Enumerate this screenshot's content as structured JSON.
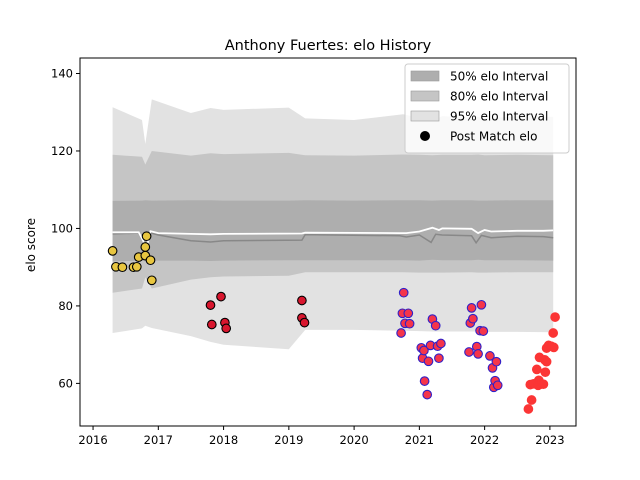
{
  "chart_data": {
    "type": "scatter",
    "title": "Anthony Fuertes: elo History",
    "xlabel": "",
    "ylabel": "elo score",
    "xlim": [
      2015.8,
      2023.4
    ],
    "ylim": [
      49,
      144
    ],
    "x_ticks": [
      2016,
      2017,
      2018,
      2019,
      2020,
      2021,
      2022,
      2023
    ],
    "y_ticks": [
      60,
      80,
      100,
      120,
      140
    ],
    "grid": false,
    "legend_position": "top-right",
    "legend": [
      {
        "label": "50% elo Interval",
        "kind": "band",
        "color": "#aeaeae"
      },
      {
        "label": "80% elo Interval",
        "kind": "band",
        "color": "#c5c5c5"
      },
      {
        "label": "95% elo Interval",
        "kind": "band",
        "color": "#e2e2e2"
      },
      {
        "label": "Post Match elo",
        "kind": "marker",
        "color": "#000000"
      }
    ],
    "bands": {
      "x": [
        2016.3,
        2016.75,
        2016.8,
        2016.9,
        2017.5,
        2017.8,
        2018.0,
        2019.0,
        2019.25,
        2020.0,
        2020.75,
        2021.0,
        2021.2,
        2021.35,
        2021.8,
        2021.9,
        2022.0,
        2022.5,
        2023.05
      ],
      "q50": {
        "lower": [
          91.5,
          91.7,
          91.5,
          91.7,
          91.7,
          91.6,
          91.7,
          91.8,
          91.8,
          91.8,
          91.8,
          91.7,
          91.9,
          91.8,
          91.8,
          91.9,
          91.8,
          91.8,
          91.7
        ],
        "upper": [
          107.1,
          107.2,
          107.3,
          107.2,
          107.3,
          107.3,
          107.2,
          107.2,
          107.3,
          107.2,
          107.3,
          107.3,
          107.2,
          107.3,
          107.3,
          107.2,
          107.2,
          107.3,
          107.3
        ]
      },
      "q80": {
        "lower": [
          83.4,
          84.5,
          87.4,
          84.5,
          86.8,
          87.4,
          87.6,
          87.8,
          88.7,
          88.7,
          88.7,
          88.6,
          88.6,
          88.6,
          88.7,
          88.6,
          88.6,
          88.7,
          88.7
        ]
      },
      "q95": {
        "lower": [
          73.0,
          74.2,
          74.9,
          74.3,
          72.2,
          70.7,
          70.0,
          68.8,
          73.8,
          73.8,
          73.6,
          73.5,
          73.4,
          73.4,
          73.4,
          73.4,
          73.3,
          73.3,
          73.2
        ],
        "upper": [
          131.3,
          128.0,
          121.8,
          133.3,
          129.8,
          131.1,
          130.6,
          131.2,
          128.4,
          128.0,
          129.5,
          128.6,
          127.8,
          129.0,
          128.6,
          128.8,
          128.3,
          129.0,
          128.8
        ]
      },
      "q80_upper": [
        119.0,
        118.5,
        116.5,
        120.0,
        118.8,
        119.4,
        119.2,
        119.5,
        118.9,
        118.8,
        119.1,
        119.0,
        118.9,
        119.0,
        119.0,
        119.1,
        118.9,
        119.0,
        118.9
      ]
    },
    "mean_line": {
      "color": "#888888",
      "x": [
        2016.3,
        2016.7,
        2016.78,
        2016.85,
        2017.0,
        2017.5,
        2017.8,
        2018.0,
        2019.2,
        2019.25,
        2020.7,
        2020.8,
        2021.0,
        2021.18,
        2021.25,
        2021.35,
        2021.8,
        2021.87,
        2021.95,
        2022.1,
        2022.5,
        2022.9,
        2023.05
      ],
      "y": [
        98.6,
        98.8,
        96.2,
        99.0,
        98.3,
        96.8,
        96.5,
        96.8,
        97.0,
        98.4,
        98.1,
        97.8,
        98.3,
        96.4,
        98.5,
        98.3,
        98.1,
        96.3,
        98.2,
        97.6,
        98.0,
        97.9,
        97.6
      ]
    },
    "median_line": {
      "color": "#ffffff",
      "x": [
        2016.3,
        2016.7,
        2016.76,
        2016.82,
        2016.88,
        2017.0,
        2017.5,
        2017.8,
        2018.0,
        2019.2,
        2019.25,
        2020.7,
        2020.8,
        2021.0,
        2021.2,
        2021.3,
        2021.35,
        2021.8,
        2021.9,
        2022.0,
        2022.1,
        2022.5,
        2022.9,
        2023.05
      ],
      "y": [
        99.0,
        99.0,
        97.0,
        95.0,
        99.3,
        98.8,
        98.6,
        98.5,
        98.6,
        98.7,
        98.9,
        98.8,
        98.8,
        99.2,
        100.2,
        99.6,
        100.0,
        99.9,
        98.8,
        99.6,
        99.2,
        99.4,
        99.4,
        99.5
      ]
    },
    "series": [
      {
        "fill": "#e8c640",
        "edge": "#000000",
        "points": [
          {
            "x": 2016.3,
            "y": 94.2
          },
          {
            "x": 2016.35,
            "y": 90.1
          },
          {
            "x": 2016.45,
            "y": 90.0
          },
          {
            "x": 2016.62,
            "y": 90.0
          },
          {
            "x": 2016.67,
            "y": 90.1
          },
          {
            "x": 2016.7,
            "y": 92.6
          },
          {
            "x": 2016.8,
            "y": 93.0
          },
          {
            "x": 2016.8,
            "y": 95.2
          },
          {
            "x": 2016.82,
            "y": 98.0
          },
          {
            "x": 2016.88,
            "y": 91.8
          },
          {
            "x": 2016.9,
            "y": 86.6
          }
        ]
      },
      {
        "fill": "#d8162e",
        "edge": "#000000",
        "points": [
          {
            "x": 2017.8,
            "y": 80.2
          },
          {
            "x": 2017.82,
            "y": 75.2
          },
          {
            "x": 2017.96,
            "y": 82.4
          },
          {
            "x": 2018.02,
            "y": 75.7
          },
          {
            "x": 2018.04,
            "y": 74.2
          },
          {
            "x": 2019.2,
            "y": 81.4
          },
          {
            "x": 2019.2,
            "y": 76.9
          },
          {
            "x": 2019.24,
            "y": 75.7
          }
        ]
      },
      {
        "fill": "#f5354a",
        "edge": "#3020c8",
        "points": [
          {
            "x": 2020.72,
            "y": 73.0
          },
          {
            "x": 2020.74,
            "y": 78.1
          },
          {
            "x": 2020.76,
            "y": 83.4
          },
          {
            "x": 2020.78,
            "y": 75.5
          },
          {
            "x": 2020.83,
            "y": 78.1
          },
          {
            "x": 2020.85,
            "y": 75.4
          },
          {
            "x": 2021.03,
            "y": 69.2
          },
          {
            "x": 2021.05,
            "y": 66.5
          },
          {
            "x": 2021.07,
            "y": 68.5
          },
          {
            "x": 2021.08,
            "y": 60.6
          },
          {
            "x": 2021.12,
            "y": 57.1
          },
          {
            "x": 2021.14,
            "y": 65.7
          },
          {
            "x": 2021.17,
            "y": 69.8
          },
          {
            "x": 2021.2,
            "y": 76.6
          },
          {
            "x": 2021.25,
            "y": 74.9
          },
          {
            "x": 2021.28,
            "y": 69.6
          },
          {
            "x": 2021.3,
            "y": 66.5
          },
          {
            "x": 2021.33,
            "y": 70.3
          },
          {
            "x": 2021.76,
            "y": 68.1
          },
          {
            "x": 2021.78,
            "y": 75.6
          },
          {
            "x": 2021.8,
            "y": 79.5
          },
          {
            "x": 2021.82,
            "y": 76.7
          },
          {
            "x": 2021.88,
            "y": 69.5
          },
          {
            "x": 2021.9,
            "y": 67.6
          },
          {
            "x": 2021.93,
            "y": 73.6
          },
          {
            "x": 2021.95,
            "y": 80.3
          },
          {
            "x": 2021.98,
            "y": 73.5
          },
          {
            "x": 2022.08,
            "y": 67.1
          },
          {
            "x": 2022.12,
            "y": 64.0
          },
          {
            "x": 2022.14,
            "y": 59.0
          },
          {
            "x": 2022.16,
            "y": 60.7
          },
          {
            "x": 2022.2,
            "y": 59.5
          },
          {
            "x": 2022.18,
            "y": 65.6
          }
        ]
      },
      {
        "fill": "#fb3535",
        "edge": "#fb3535",
        "points": [
          {
            "x": 2022.67,
            "y": 53.4
          },
          {
            "x": 2022.7,
            "y": 59.7
          },
          {
            "x": 2022.72,
            "y": 55.7
          },
          {
            "x": 2022.75,
            "y": 59.9
          },
          {
            "x": 2022.8,
            "y": 63.6
          },
          {
            "x": 2022.82,
            "y": 59.5
          },
          {
            "x": 2022.83,
            "y": 60.8
          },
          {
            "x": 2022.84,
            "y": 66.7
          },
          {
            "x": 2022.86,
            "y": 59.8
          },
          {
            "x": 2022.9,
            "y": 59.8
          },
          {
            "x": 2022.92,
            "y": 66.1
          },
          {
            "x": 2022.95,
            "y": 65.6
          },
          {
            "x": 2022.93,
            "y": 62.9
          },
          {
            "x": 2022.95,
            "y": 69.1
          },
          {
            "x": 2022.98,
            "y": 69.8
          },
          {
            "x": 2023.02,
            "y": 69.6
          },
          {
            "x": 2023.05,
            "y": 73.0
          },
          {
            "x": 2023.06,
            "y": 69.3
          },
          {
            "x": 2023.08,
            "y": 77.1
          }
        ]
      }
    ]
  }
}
